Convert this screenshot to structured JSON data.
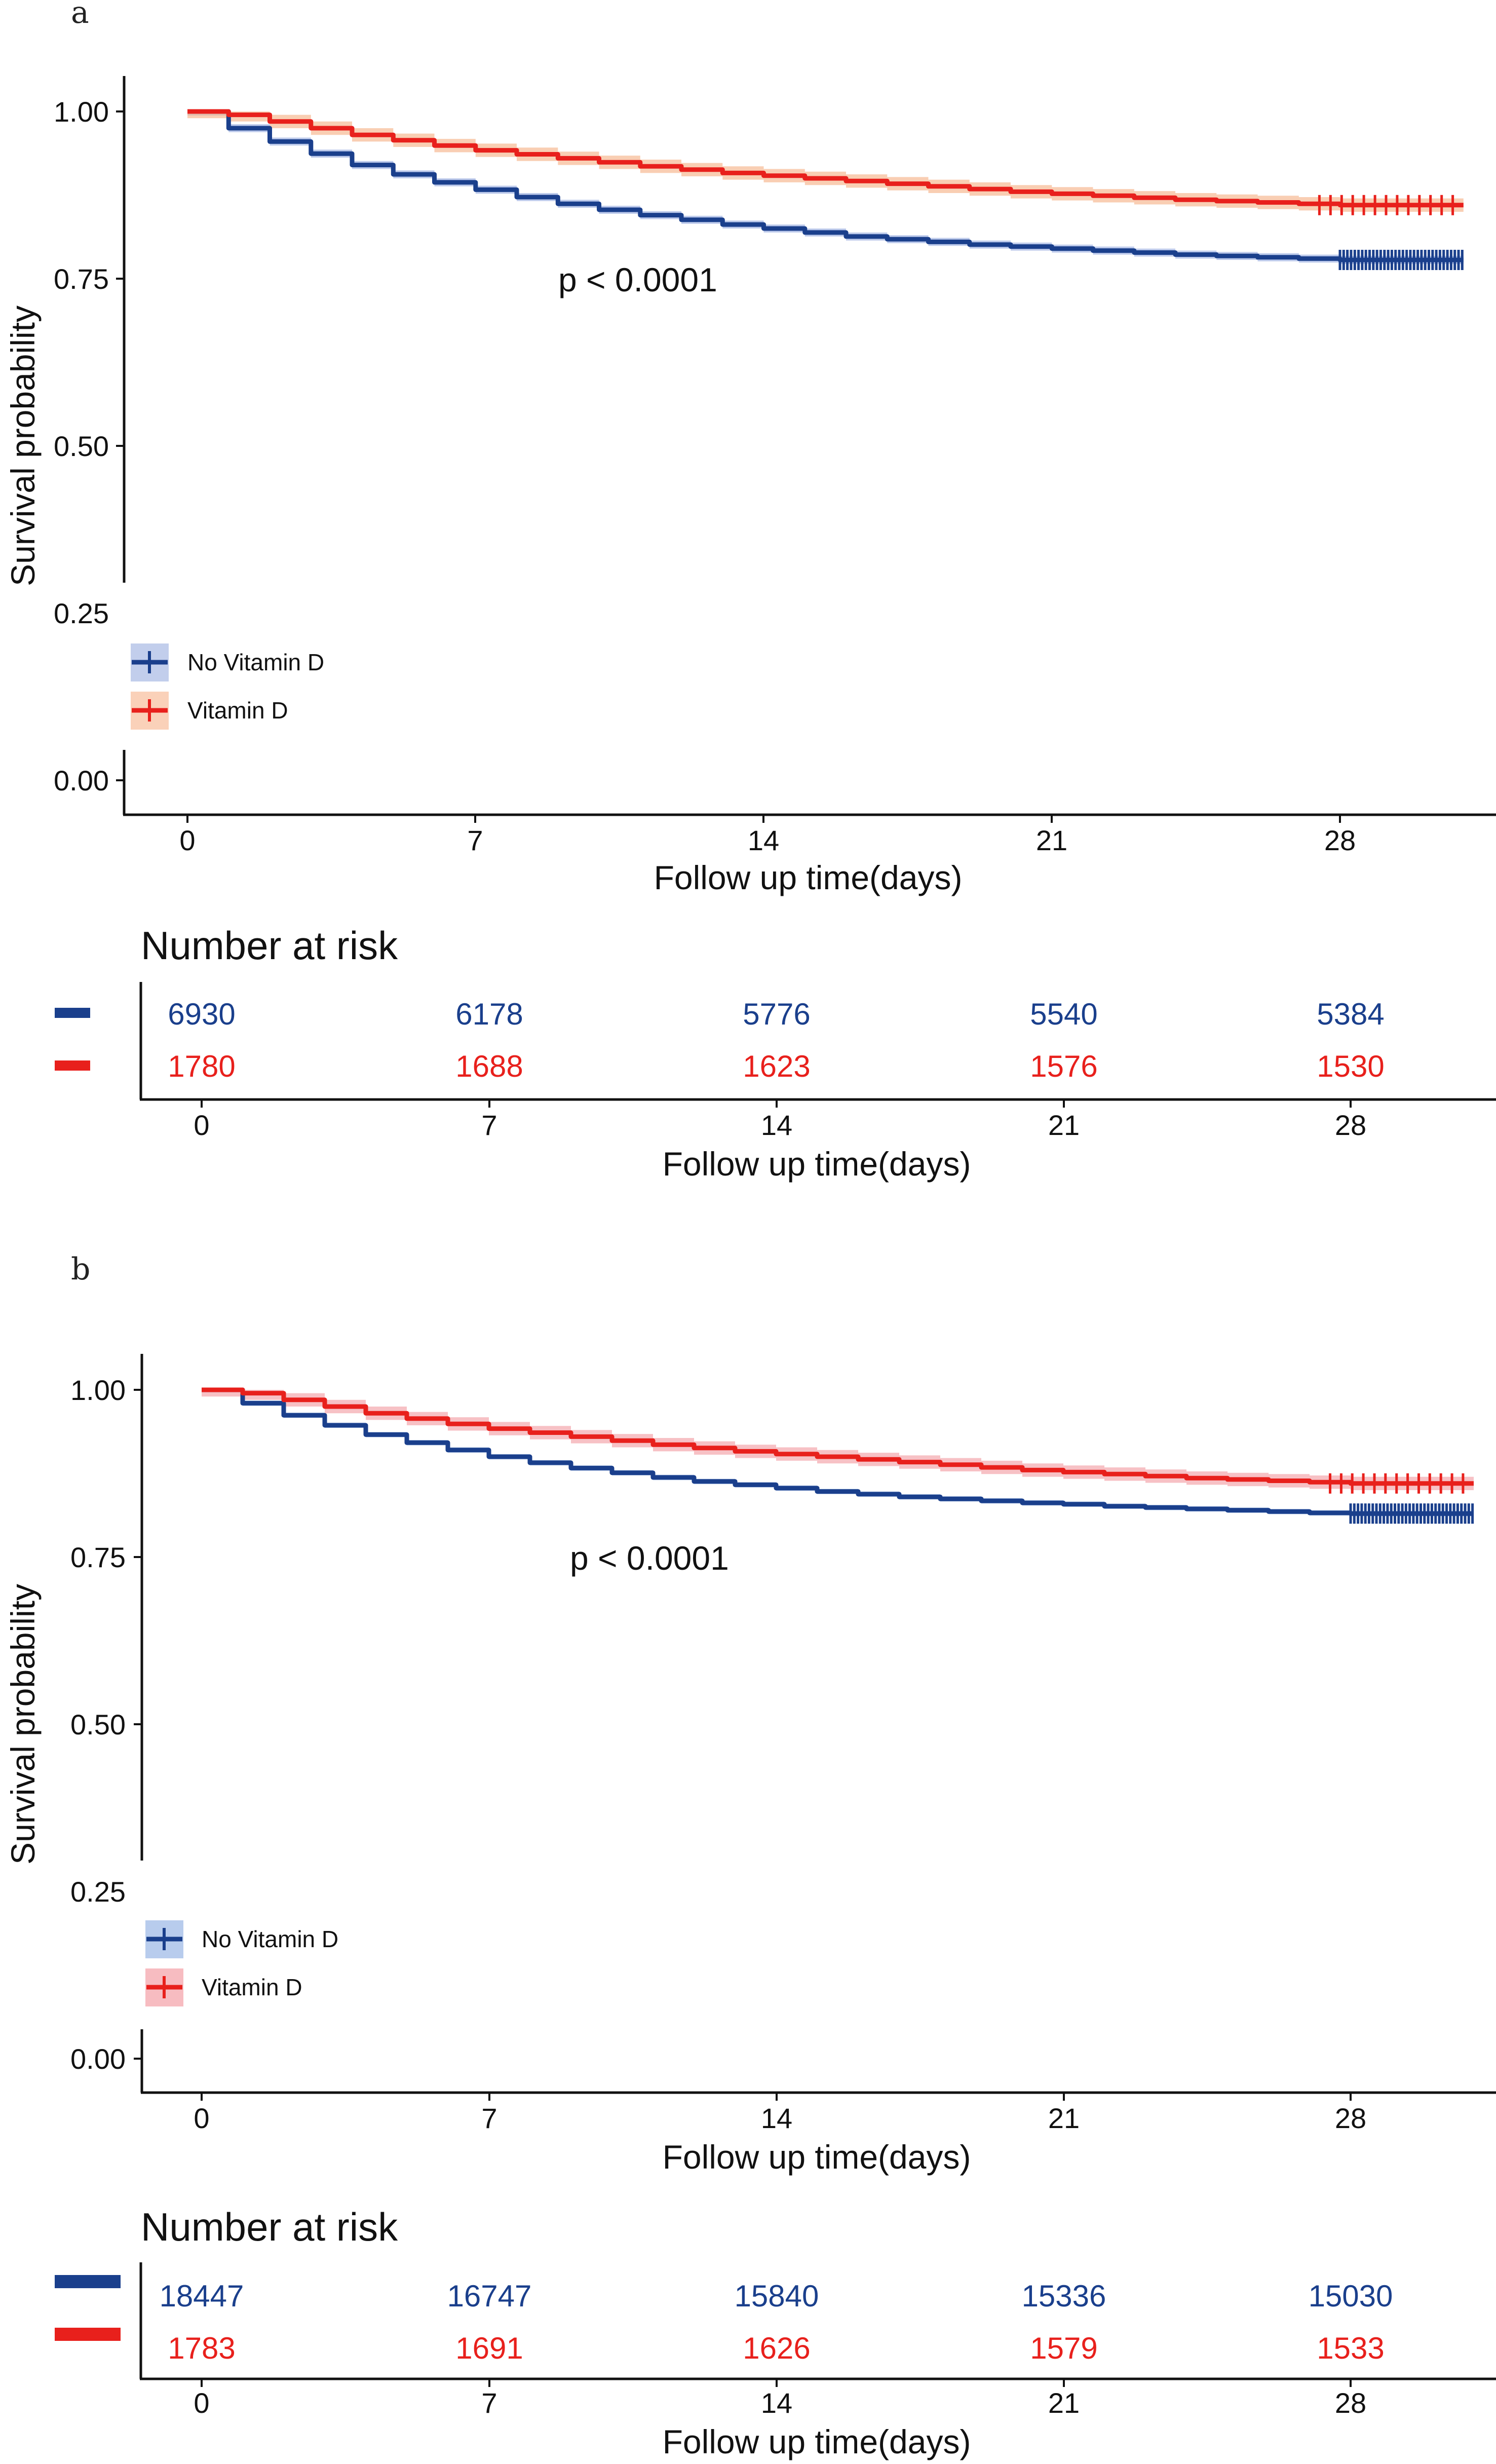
{
  "chart_data": [
    {
      "panel": "a",
      "type": "line",
      "chart_subtype": "kaplan-meier",
      "ylabel": "Survival probability",
      "xlabel": "Follow up time(days)",
      "xlim": [
        0,
        31
      ],
      "ylim": [
        0,
        1.05
      ],
      "xticks": [
        "0",
        "7",
        "14",
        "21",
        "28"
      ],
      "xtick_values": [
        0,
        7,
        14,
        21,
        28
      ],
      "yticks": [
        "0.00",
        "0.25",
        "0.50",
        "0.75",
        "1.00"
      ],
      "ytick_values": [
        0,
        0.25,
        0.5,
        0.75,
        1.0
      ],
      "annotation": "p < 0.0001",
      "annotation_pos": [
        9,
        0.75
      ],
      "legend": {
        "placement": "bottom-left",
        "entries": [
          "No Vitamin D",
          "Vitamin D"
        ]
      },
      "series": [
        {
          "name": "No Vitamin D",
          "color": "#1a3f8c",
          "band_color": "#9aaee0",
          "x": [
            0,
            1,
            2,
            3,
            4,
            5,
            6,
            7,
            8,
            9,
            10,
            11,
            12,
            13,
            14,
            15,
            16,
            17,
            18,
            19,
            20,
            21,
            22,
            23,
            24,
            25,
            26,
            27,
            28,
            29,
            30,
            31
          ],
          "y": [
            1.0,
            0.975,
            0.955,
            0.937,
            0.92,
            0.906,
            0.894,
            0.883,
            0.872,
            0.862,
            0.853,
            0.845,
            0.838,
            0.831,
            0.825,
            0.819,
            0.813,
            0.809,
            0.805,
            0.801,
            0.798,
            0.795,
            0.792,
            0.789,
            0.786,
            0.784,
            0.782,
            0.78,
            0.778,
            0.778,
            0.778,
            0.778
          ],
          "band": 0.006,
          "censor_from": 28
        },
        {
          "name": "Vitamin D",
          "color": "#e8201c",
          "band_color": "#f6b38a",
          "x": [
            0,
            1,
            2,
            3,
            4,
            5,
            6,
            7,
            8,
            9,
            10,
            11,
            12,
            13,
            14,
            15,
            16,
            17,
            18,
            19,
            20,
            21,
            22,
            23,
            24,
            25,
            26,
            27,
            28,
            29,
            30,
            31
          ],
          "y": [
            1.0,
            0.995,
            0.985,
            0.975,
            0.965,
            0.957,
            0.949,
            0.942,
            0.936,
            0.93,
            0.924,
            0.918,
            0.913,
            0.908,
            0.904,
            0.9,
            0.896,
            0.892,
            0.888,
            0.884,
            0.88,
            0.877,
            0.874,
            0.871,
            0.868,
            0.866,
            0.864,
            0.862,
            0.86,
            0.86,
            0.86,
            0.86
          ],
          "band": 0.01,
          "censor_from": 27.5
        }
      ],
      "risk_table": {
        "title": "Number at risk",
        "xlabel": "Follow up time(days)",
        "xticks": [
          "0",
          "7",
          "14",
          "21",
          "28"
        ],
        "rows": [
          {
            "name": "No Vitamin D",
            "color": "#1a3f8c",
            "values": [
              "6930",
              "6178",
              "5776",
              "5540",
              "5384"
            ]
          },
          {
            "name": "Vitamin D",
            "color": "#e8201c",
            "values": [
              "1780",
              "1688",
              "1623",
              "1576",
              "1530"
            ]
          }
        ]
      }
    },
    {
      "panel": "b",
      "type": "line",
      "chart_subtype": "kaplan-meier",
      "ylabel": "Survival probability",
      "xlabel": "Follow up time(days)",
      "xlim": [
        0,
        31
      ],
      "ylim": [
        0,
        1.05
      ],
      "xticks": [
        "0",
        "7",
        "14",
        "21",
        "28"
      ],
      "xtick_values": [
        0,
        7,
        14,
        21,
        28
      ],
      "yticks": [
        "0.00",
        "0.25",
        "0.50",
        "0.75",
        "1.00"
      ],
      "ytick_values": [
        0,
        0.25,
        0.5,
        0.75,
        1.0
      ],
      "annotation": "p < 0.0001",
      "annotation_pos": [
        9,
        0.75
      ],
      "legend": {
        "placement": "bottom-left",
        "entries": [
          "No Vitamin D",
          "Vitamin D"
        ]
      },
      "series": [
        {
          "name": "No Vitamin D",
          "color": "#1a3f8c",
          "band_color": "#9ab7e6",
          "x": [
            0,
            1,
            2,
            3,
            4,
            5,
            6,
            7,
            8,
            9,
            10,
            11,
            12,
            13,
            14,
            15,
            16,
            17,
            18,
            19,
            20,
            21,
            22,
            23,
            24,
            25,
            26,
            27,
            28,
            29,
            30,
            31
          ],
          "y": [
            1.0,
            0.98,
            0.962,
            0.947,
            0.933,
            0.921,
            0.91,
            0.9,
            0.891,
            0.883,
            0.876,
            0.869,
            0.863,
            0.858,
            0.853,
            0.848,
            0.844,
            0.84,
            0.837,
            0.834,
            0.831,
            0.829,
            0.826,
            0.824,
            0.822,
            0.82,
            0.818,
            0.816,
            0.815,
            0.815,
            0.815,
            0.815
          ],
          "band": 0.004,
          "censor_from": 28
        },
        {
          "name": "Vitamin D",
          "color": "#e8201c",
          "band_color": "#f3a0a6",
          "x": [
            0,
            1,
            2,
            3,
            4,
            5,
            6,
            7,
            8,
            9,
            10,
            11,
            12,
            13,
            14,
            15,
            16,
            17,
            18,
            19,
            20,
            21,
            22,
            23,
            24,
            25,
            26,
            27,
            28,
            29,
            30,
            31
          ],
          "y": [
            1.0,
            0.995,
            0.985,
            0.975,
            0.965,
            0.957,
            0.949,
            0.942,
            0.936,
            0.93,
            0.924,
            0.918,
            0.913,
            0.908,
            0.904,
            0.9,
            0.896,
            0.892,
            0.888,
            0.884,
            0.88,
            0.877,
            0.874,
            0.871,
            0.868,
            0.866,
            0.864,
            0.862,
            0.86,
            0.86,
            0.86,
            0.86
          ],
          "band": 0.01,
          "censor_from": 27.5
        }
      ],
      "risk_table": {
        "title": "Number at risk",
        "xlabel": "Follow up time(days)",
        "xticks": [
          "0",
          "7",
          "14",
          "21",
          "28"
        ],
        "rows": [
          {
            "name": "No Vitamin D",
            "color": "#1a3f8c",
            "values": [
              "18447",
              "16747",
              "15840",
              "15336",
              "15030"
            ]
          },
          {
            "name": "Vitamin D",
            "color": "#e8201c",
            "values": [
              "1783",
              "1691",
              "1626",
              "1579",
              "1533"
            ]
          }
        ]
      }
    }
  ]
}
